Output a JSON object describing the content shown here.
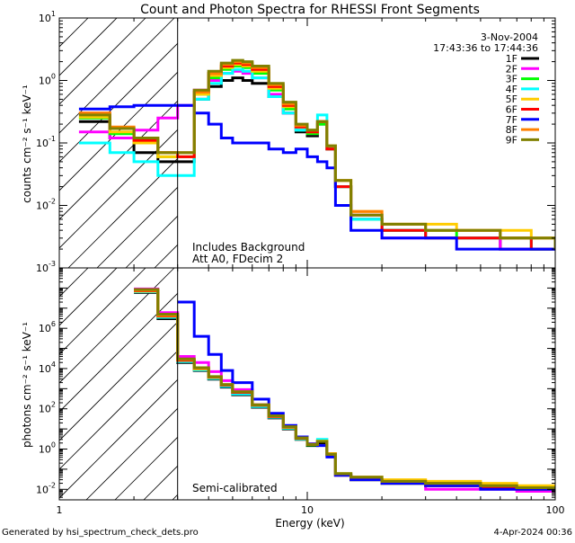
{
  "chart_data": [
    {
      "type": "line",
      "title": "Count and Photon Spectra for RHESSI Front Segments",
      "xlabel": "",
      "ylabel": "counts cm⁻² s⁻¹ keV⁻¹",
      "xscale": "log",
      "yscale": "log",
      "xlim": [
        1,
        100
      ],
      "ylim": [
        0.001,
        10
      ],
      "y_ticks": [
        {
          "v": 0.001,
          "mant": "10",
          "exp": "-3"
        },
        {
          "v": 0.01,
          "mant": "10",
          "exp": "-2"
        },
        {
          "v": 0.1,
          "mant": "10",
          "exp": "-1"
        },
        {
          "v": 1,
          "mant": "10",
          "exp": "0"
        },
        {
          "v": 10,
          "mant": "10",
          "exp": "1"
        }
      ],
      "date": "3-Nov-2004",
      "time_range": "17:43:36 to 17:44:36",
      "annotations": [
        "Includes Background",
        "Att A0, FDecim 2"
      ],
      "hatched_region_x": [
        1,
        3
      ],
      "legend_position": "top-right",
      "series": [
        {
          "name": "1F",
          "color": "#000000",
          "x": [
            1.2,
            1.6,
            2.0,
            2.5,
            3.0,
            3.5,
            4.0,
            4.5,
            5.0,
            5.5,
            6.0,
            7.0,
            8.0,
            9.0,
            10.0,
            11.0,
            12.0,
            13.0,
            15.0,
            20.0,
            30.0,
            40.0,
            60.0,
            80.0,
            100.0
          ],
          "y": [
            0.22,
            0.12,
            0.07,
            0.05,
            0.05,
            0.5,
            0.8,
            1.0,
            1.1,
            1.0,
            0.9,
            0.55,
            0.3,
            0.15,
            0.13,
            0.2,
            0.08,
            0.02,
            0.006,
            0.004,
            0.003,
            0.003,
            0.002,
            0.002,
            0.002
          ]
        },
        {
          "name": "2F",
          "color": "#ff00ff",
          "x": [
            1.2,
            1.6,
            2.0,
            2.5,
            3.0,
            3.5,
            4.0,
            4.5,
            5.0,
            5.5,
            6.0,
            7.0,
            8.0,
            9.0,
            10.0,
            11.0,
            12.0,
            13.0,
            15.0,
            20.0,
            30.0,
            40.0,
            60.0,
            80.0,
            100.0
          ],
          "y": [
            0.15,
            0.12,
            0.16,
            0.25,
            0.4,
            0.7,
            1.0,
            1.3,
            1.4,
            1.3,
            1.1,
            0.6,
            0.3,
            0.16,
            0.14,
            0.22,
            0.08,
            0.02,
            0.006,
            0.003,
            0.003,
            0.003,
            0.002,
            0.002,
            0.002
          ]
        },
        {
          "name": "3F",
          "color": "#00ff00",
          "x": [
            1.2,
            1.6,
            2.0,
            2.5,
            3.0,
            3.5,
            4.0,
            4.5,
            5.0,
            5.5,
            6.0,
            7.0,
            8.0,
            9.0,
            10.0,
            11.0,
            12.0,
            13.0,
            15.0,
            20.0,
            30.0,
            40.0,
            60.0,
            80.0,
            100.0
          ],
          "y": [
            0.25,
            0.14,
            0.1,
            0.06,
            0.06,
            0.6,
            1.1,
            1.5,
            1.7,
            1.6,
            1.3,
            0.7,
            0.35,
            0.16,
            0.14,
            0.2,
            0.08,
            0.02,
            0.006,
            0.004,
            0.004,
            0.003,
            0.003,
            0.002,
            0.002
          ]
        },
        {
          "name": "4F",
          "color": "#00ffff",
          "x": [
            1.2,
            1.6,
            2.0,
            2.5,
            3.0,
            3.5,
            4.0,
            4.5,
            5.0,
            5.5,
            6.0,
            7.0,
            8.0,
            9.0,
            10.0,
            11.0,
            12.0,
            13.0,
            15.0,
            20.0,
            30.0,
            40.0,
            60.0,
            80.0,
            100.0
          ],
          "y": [
            0.1,
            0.07,
            0.05,
            0.03,
            0.03,
            0.5,
            0.9,
            1.3,
            1.5,
            1.4,
            1.1,
            0.55,
            0.3,
            0.16,
            0.16,
            0.28,
            0.09,
            0.02,
            0.006,
            0.004,
            0.003,
            0.003,
            0.003,
            0.002,
            0.002
          ]
        },
        {
          "name": "5F",
          "color": "#ffcc00",
          "x": [
            1.2,
            1.6,
            2.0,
            2.5,
            3.0,
            3.5,
            4.0,
            4.5,
            5.0,
            5.5,
            6.0,
            7.0,
            8.0,
            9.0,
            10.0,
            11.0,
            12.0,
            13.0,
            15.0,
            20.0,
            30.0,
            40.0,
            60.0,
            80.0,
            100.0
          ],
          "y": [
            0.26,
            0.15,
            0.1,
            0.06,
            0.06,
            0.6,
            1.2,
            1.6,
            1.8,
            1.7,
            1.4,
            0.75,
            0.38,
            0.18,
            0.15,
            0.22,
            0.09,
            0.025,
            0.008,
            0.005,
            0.005,
            0.004,
            0.004,
            0.003,
            0.003
          ]
        },
        {
          "name": "6F",
          "color": "#ff0000",
          "x": [
            1.2,
            1.6,
            2.0,
            2.5,
            3.0,
            3.5,
            4.0,
            4.5,
            5.0,
            5.5,
            6.0,
            7.0,
            8.0,
            9.0,
            10.0,
            11.0,
            12.0,
            13.0,
            15.0,
            20.0,
            30.0,
            40.0,
            60.0,
            80.0,
            100.0
          ],
          "y": [
            0.3,
            0.17,
            0.11,
            0.07,
            0.06,
            0.65,
            1.3,
            1.7,
            1.9,
            1.8,
            1.5,
            0.8,
            0.4,
            0.18,
            0.15,
            0.22,
            0.08,
            0.02,
            0.007,
            0.004,
            0.003,
            0.003,
            0.003,
            0.002,
            0.002
          ]
        },
        {
          "name": "7F",
          "color": "#0000ff",
          "x": [
            1.2,
            1.6,
            2.0,
            2.5,
            3.0,
            3.5,
            4.0,
            4.5,
            5.0,
            5.5,
            6.0,
            7.0,
            8.0,
            9.0,
            10.0,
            11.0,
            12.0,
            13.0,
            15.0,
            20.0,
            30.0,
            40.0,
            60.0,
            80.0,
            100.0
          ],
          "y": [
            0.35,
            0.38,
            0.4,
            0.4,
            0.4,
            0.3,
            0.2,
            0.12,
            0.1,
            0.1,
            0.1,
            0.08,
            0.07,
            0.08,
            0.06,
            0.05,
            0.04,
            0.01,
            0.004,
            0.003,
            0.003,
            0.002,
            0.002,
            0.002,
            0.002
          ]
        },
        {
          "name": "8F",
          "color": "#ff8000",
          "x": [
            1.2,
            1.6,
            2.0,
            2.5,
            3.0,
            3.5,
            4.0,
            4.5,
            5.0,
            5.5,
            6.0,
            7.0,
            8.0,
            9.0,
            10.0,
            11.0,
            12.0,
            13.0,
            15.0,
            20.0,
            30.0,
            40.0,
            60.0,
            80.0,
            100.0
          ],
          "y": [
            0.3,
            0.18,
            0.12,
            0.07,
            0.07,
            0.65,
            1.3,
            1.8,
            2.0,
            1.9,
            1.6,
            0.85,
            0.42,
            0.19,
            0.16,
            0.22,
            0.09,
            0.025,
            0.008,
            0.005,
            0.004,
            0.004,
            0.003,
            0.003,
            0.002
          ]
        },
        {
          "name": "9F",
          "color": "#808000",
          "x": [
            1.2,
            1.6,
            2.0,
            2.5,
            3.0,
            3.5,
            4.0,
            4.5,
            5.0,
            5.5,
            6.0,
            7.0,
            8.0,
            9.0,
            10.0,
            11.0,
            12.0,
            13.0,
            15.0,
            20.0,
            30.0,
            40.0,
            60.0,
            80.0,
            100.0
          ],
          "y": [
            0.28,
            0.17,
            0.12,
            0.07,
            0.07,
            0.7,
            1.4,
            1.9,
            2.1,
            2.0,
            1.7,
            0.9,
            0.45,
            0.2,
            0.16,
            0.22,
            0.09,
            0.025,
            0.007,
            0.005,
            0.004,
            0.004,
            0.003,
            0.003,
            0.002
          ]
        }
      ]
    },
    {
      "type": "line",
      "title": "",
      "xlabel": "Energy (keV)",
      "ylabel": "photons cm⁻² s⁻¹ keV⁻¹",
      "xscale": "log",
      "yscale": "log",
      "xlim": [
        1,
        100
      ],
      "ylim": [
        0.003,
        1000000000
      ],
      "y_ticks": [
        {
          "v": 0.01,
          "mant": "10",
          "exp": "-2"
        },
        {
          "v": 1,
          "mant": "10",
          "exp": "0"
        },
        {
          "v": 100,
          "mant": "10",
          "exp": "2"
        },
        {
          "v": 10000,
          "mant": "10",
          "exp": "4"
        },
        {
          "v": 1000000,
          "mant": "10",
          "exp": "6"
        }
      ],
      "x_ticks": [
        {
          "v": 1,
          "label": "1"
        },
        {
          "v": 10,
          "label": "10"
        },
        {
          "v": 100,
          "label": "100"
        }
      ],
      "annotations": [
        "Semi-calibrated"
      ],
      "hatched_region_x": [
        1,
        3
      ],
      "series": [
        {
          "name": "1F",
          "color": "#000000",
          "x": [
            2.0,
            2.5,
            3.0,
            3.5,
            4.0,
            4.5,
            5.0,
            6.0,
            7.0,
            8.0,
            9.0,
            10.0,
            11.0,
            12.0,
            13.0,
            15.0,
            20.0,
            30.0,
            50.0,
            70.0,
            100.0
          ],
          "y": [
            60000000,
            3000000,
            20000,
            8000,
            3000,
            1200,
            500,
            120,
            35,
            10,
            3,
            1.5,
            2,
            0.5,
            0.05,
            0.03,
            0.02,
            0.015,
            0.012,
            0.01,
            0.01
          ]
        },
        {
          "name": "2F",
          "color": "#ff00ff",
          "x": [
            2.0,
            2.5,
            3.0,
            3.5,
            4.0,
            4.5,
            5.0,
            6.0,
            7.0,
            8.0,
            9.0,
            10.0,
            11.0,
            12.0,
            13.0,
            15.0,
            20.0,
            30.0,
            50.0,
            70.0,
            100.0
          ],
          "y": [
            90000000,
            6000000,
            40000,
            20000,
            7000,
            2500,
            900,
            160,
            40,
            12,
            3.5,
            1.8,
            2.5,
            0.6,
            0.05,
            0.03,
            0.02,
            0.01,
            0.01,
            0.008,
            0.008
          ]
        },
        {
          "name": "3F",
          "color": "#00ff00",
          "x": [
            2.0,
            2.5,
            3.0,
            3.5,
            4.0,
            4.5,
            5.0,
            6.0,
            7.0,
            8.0,
            9.0,
            10.0,
            11.0,
            12.0,
            13.0,
            15.0,
            20.0,
            30.0,
            50.0,
            70.0,
            100.0
          ],
          "y": [
            70000000,
            4000000,
            25000,
            9000,
            3500,
            1400,
            600,
            140,
            40,
            11,
            3.2,
            1.6,
            2.4,
            0.5,
            0.06,
            0.03,
            0.02,
            0.02,
            0.015,
            0.012,
            0.01
          ]
        },
        {
          "name": "4F",
          "color": "#00ffff",
          "x": [
            2.0,
            2.5,
            3.0,
            3.5,
            4.0,
            4.5,
            5.0,
            6.0,
            7.0,
            8.0,
            9.0,
            10.0,
            11.0,
            12.0,
            13.0,
            15.0,
            20.0,
            30.0,
            50.0,
            70.0,
            100.0
          ],
          "y": [
            65000000,
            3500000,
            22000,
            8500,
            3200,
            1300,
            550,
            130,
            38,
            11,
            3.2,
            1.7,
            3,
            0.6,
            0.05,
            0.03,
            0.02,
            0.015,
            0.012,
            0.01,
            0.01
          ]
        },
        {
          "name": "5F",
          "color": "#ffcc00",
          "x": [
            2.0,
            2.5,
            3.0,
            3.5,
            4.0,
            4.5,
            5.0,
            6.0,
            7.0,
            8.0,
            9.0,
            10.0,
            11.0,
            12.0,
            13.0,
            15.0,
            20.0,
            30.0,
            50.0,
            70.0,
            100.0
          ],
          "y": [
            70000000,
            4000000,
            25000,
            9500,
            3600,
            1500,
            650,
            150,
            42,
            12,
            3.5,
            1.7,
            2.5,
            0.6,
            0.06,
            0.04,
            0.03,
            0.025,
            0.02,
            0.015,
            0.015
          ]
        },
        {
          "name": "6F",
          "color": "#ff0000",
          "x": [
            2.0,
            2.5,
            3.0,
            3.5,
            4.0,
            4.5,
            5.0,
            6.0,
            7.0,
            8.0,
            9.0,
            10.0,
            11.0,
            12.0,
            13.0,
            15.0,
            20.0,
            30.0,
            50.0,
            70.0,
            100.0
          ],
          "y": [
            75000000,
            4200000,
            26000,
            10000,
            3800,
            1500,
            650,
            150,
            42,
            12,
            3.4,
            1.7,
            2.4,
            0.55,
            0.05,
            0.03,
            0.02,
            0.015,
            0.012,
            0.01,
            0.01
          ]
        },
        {
          "name": "7F",
          "color": "#0000ff",
          "x": [
            3.0,
            3.5,
            4.0,
            4.5,
            5.0,
            6.0,
            7.0,
            8.0,
            9.0,
            10.0,
            11.0,
            12.0,
            13.0,
            15.0,
            20.0,
            30.0,
            50.0,
            70.0,
            100.0
          ],
          "y": [
            20000000,
            400000,
            50000,
            8000,
            2000,
            300,
            60,
            15,
            4,
            1.8,
            1.5,
            0.4,
            0.05,
            0.03,
            0.02,
            0.015,
            0.01,
            0.01,
            0.01
          ]
        },
        {
          "name": "8F",
          "color": "#ff8000",
          "x": [
            2.0,
            2.5,
            3.0,
            3.5,
            4.0,
            4.5,
            5.0,
            6.0,
            7.0,
            8.0,
            9.0,
            10.0,
            11.0,
            12.0,
            13.0,
            15.0,
            20.0,
            30.0,
            50.0,
            70.0,
            100.0
          ],
          "y": [
            80000000,
            4500000,
            28000,
            10000,
            3900,
            1600,
            700,
            160,
            44,
            12,
            3.5,
            1.7,
            2.4,
            0.55,
            0.06,
            0.04,
            0.025,
            0.02,
            0.015,
            0.012,
            0.012
          ]
        },
        {
          "name": "9F",
          "color": "#808000",
          "x": [
            2.0,
            2.5,
            3.0,
            3.5,
            4.0,
            4.5,
            5.0,
            6.0,
            7.0,
            8.0,
            9.0,
            10.0,
            11.0,
            12.0,
            13.0,
            15.0,
            20.0,
            30.0,
            50.0,
            70.0,
            100.0
          ],
          "y": [
            85000000,
            5000000,
            30000,
            11000,
            4000,
            1600,
            700,
            160,
            45,
            13,
            3.6,
            1.7,
            2.4,
            0.55,
            0.06,
            0.04,
            0.025,
            0.02,
            0.015,
            0.012,
            0.012
          ]
        }
      ]
    }
  ],
  "footer": {
    "generated_by": "Generated by hsi_spectrum_check_dets.pro",
    "date": "4-Apr-2024 00:36"
  }
}
